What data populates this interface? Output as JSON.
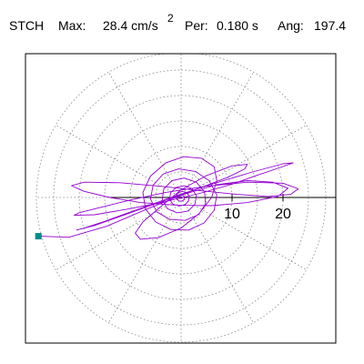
{
  "header": {
    "station": "STCH",
    "max_label": "Max:",
    "max_value": "28.4 cm/s",
    "max_exp": "2",
    "per_label": "Per:",
    "per_value": "0.180 s",
    "ang_label": "Ang:",
    "ang_value": "197.4"
  },
  "chart_data": {
    "type": "polar-hodogram",
    "title": "",
    "radial_axis": {
      "max": 28.4,
      "ticks": [
        10,
        20
      ],
      "tick_labels": [
        "10",
        "20"
      ],
      "rings": [
        5,
        10,
        15,
        20,
        25
      ],
      "spokes_deg": 30
    },
    "grid": true,
    "frame_color": "#000000",
    "grid_color": "#888888",
    "trace_color": "#9400D3",
    "start_marker_color": "#008B8B",
    "start_point": {
      "x": -28.0,
      "y": -7.6
    },
    "series": [
      {
        "points": [
          [
            -28.0,
            -7.6
          ],
          [
            -22.0,
            -7.8
          ],
          [
            -14.5,
            -5.6
          ],
          [
            -7.0,
            -2.4
          ],
          [
            0.5,
            0.6
          ],
          [
            7.0,
            2.5
          ],
          [
            13.0,
            3.3
          ],
          [
            18.0,
            3.0
          ],
          [
            21.0,
            1.8
          ],
          [
            19.0,
            0.2
          ],
          [
            13.0,
            -1.0
          ],
          [
            6.0,
            -1.6
          ],
          [
            -1.0,
            -1.5
          ],
          [
            -8.0,
            -1.0
          ],
          [
            -14.0,
            0.0
          ],
          [
            -19.0,
            1.2
          ],
          [
            -21.5,
            2.3
          ],
          [
            -19.0,
            3.0
          ],
          [
            -12.0,
            2.9
          ],
          [
            -4.0,
            2.2
          ],
          [
            4.0,
            1.3
          ],
          [
            11.0,
            0.6
          ],
          [
            17.0,
            0.2
          ],
          [
            21.5,
            0.6
          ],
          [
            23.0,
            1.7
          ],
          [
            20.0,
            2.8
          ],
          [
            13.0,
            3.0
          ],
          [
            5.0,
            2.2
          ],
          [
            -3.0,
            1.0
          ],
          [
            -10.0,
            -0.5
          ],
          [
            -16.0,
            -2.0
          ],
          [
            -20.0,
            -3.0
          ],
          [
            -21.0,
            -3.5
          ],
          [
            -17.0,
            -3.4
          ],
          [
            -10.0,
            -2.2
          ],
          [
            -3.0,
            -0.8
          ],
          [
            4.0,
            0.9
          ],
          [
            10.0,
            2.6
          ],
          [
            15.0,
            4.4
          ],
          [
            19.5,
            5.9
          ],
          [
            22.0,
            6.8
          ],
          [
            20.0,
            6.6
          ],
          [
            14.0,
            5.0
          ],
          [
            6.0,
            2.6
          ],
          [
            -2.0,
            0.0
          ],
          [
            -9.0,
            -2.5
          ],
          [
            -15.0,
            -4.7
          ],
          [
            -19.0,
            -6.0
          ],
          [
            -20.5,
            -6.4
          ],
          [
            -17.0,
            -5.5
          ],
          [
            -11.0,
            -3.4
          ],
          [
            -4.0,
            -0.9
          ],
          [
            3.0,
            1.6
          ],
          [
            9.0,
            3.9
          ],
          [
            12.5,
            5.6
          ],
          [
            13.0,
            6.5
          ],
          [
            10.0,
            6.2
          ],
          [
            5.0,
            4.3
          ],
          [
            0.0,
            1.5
          ],
          [
            -4.0,
            -1.8
          ],
          [
            -7.5,
            -4.8
          ],
          [
            -9.0,
            -7.0
          ],
          [
            -8.0,
            -8.2
          ],
          [
            -4.5,
            -7.9
          ],
          [
            0.0,
            -6.0
          ],
          [
            3.5,
            -3.2
          ],
          [
            6.0,
            0.0
          ],
          [
            7.0,
            3.3
          ],
          [
            6.5,
            6.0
          ],
          [
            4.0,
            7.7
          ],
          [
            0.5,
            8.0
          ],
          [
            -3.0,
            6.8
          ],
          [
            -6.0,
            4.2
          ],
          [
            -7.5,
            1.0
          ],
          [
            -7.0,
            -2.2
          ],
          [
            -5.0,
            -4.8
          ],
          [
            -2.0,
            -6.3
          ],
          [
            1.5,
            -6.4
          ],
          [
            4.5,
            -5.0
          ],
          [
            6.5,
            -2.5
          ],
          [
            7.0,
            0.5
          ],
          [
            5.5,
            3.3
          ],
          [
            2.8,
            5.1
          ],
          [
            -0.5,
            5.6
          ],
          [
            -3.5,
            4.6
          ],
          [
            -5.5,
            2.4
          ],
          [
            -6.0,
            -0.3
          ],
          [
            -4.8,
            -2.8
          ],
          [
            -2.2,
            -4.3
          ],
          [
            0.8,
            -4.5
          ],
          [
            3.4,
            -3.4
          ],
          [
            4.8,
            -1.3
          ],
          [
            4.6,
            1.1
          ],
          [
            3.0,
            3.0
          ],
          [
            0.6,
            3.8
          ],
          [
            -1.8,
            3.3
          ],
          [
            -3.4,
            1.7
          ],
          [
            -3.7,
            -0.4
          ],
          [
            -2.7,
            -2.2
          ],
          [
            -0.8,
            -3.0
          ],
          [
            1.3,
            -2.7
          ],
          [
            2.7,
            -1.4
          ],
          [
            3.0,
            0.3
          ],
          [
            2.2,
            1.7
          ],
          [
            0.7,
            2.3
          ],
          [
            -0.9,
            2.0
          ],
          [
            -2.0,
            1.0
          ],
          [
            -2.3,
            -0.3
          ],
          [
            -1.6,
            -1.3
          ],
          [
            -0.4,
            -1.7
          ],
          [
            0.8,
            -1.4
          ],
          [
            1.5,
            -0.6
          ],
          [
            1.6,
            0.3
          ],
          [
            1.0,
            1.0
          ],
          [
            0.2,
            1.2
          ],
          [
            -0.6,
            0.9
          ],
          [
            -1.0,
            0.3
          ],
          [
            -0.9,
            -0.3
          ],
          [
            -0.4,
            -0.7
          ],
          [
            0.2,
            -0.7
          ],
          [
            0.6,
            -0.4
          ],
          [
            0.7,
            0.1
          ],
          [
            0.4,
            0.4
          ],
          [
            0.0,
            0.5
          ],
          [
            -0.3,
            0.3
          ],
          [
            -0.4,
            0.0
          ],
          [
            -0.2,
            -0.2
          ],
          [
            0.0,
            -0.2
          ],
          [
            0.2,
            -0.1
          ],
          [
            0.1,
            0.1
          ],
          [
            0.0,
            0.0
          ]
        ]
      }
    ]
  }
}
